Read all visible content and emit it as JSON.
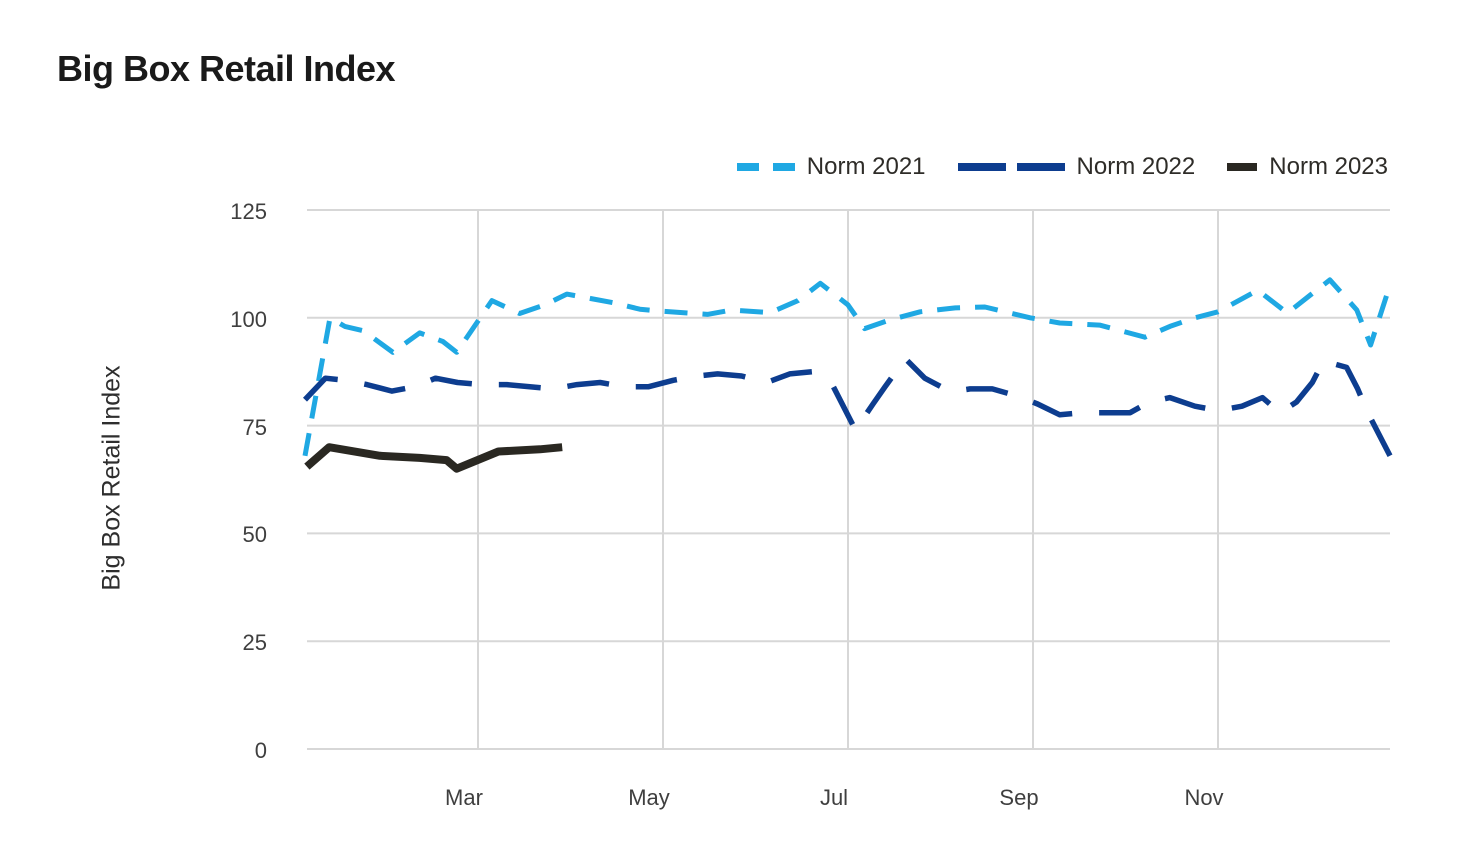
{
  "title": "Big Box Retail Index",
  "legend": {
    "items": [
      {
        "label": "Norm 2021",
        "color": "#1fa8e3",
        "swatch": "two-short-dashes"
      },
      {
        "label": "Norm 2022",
        "color": "#0d3d8f",
        "swatch": "two-long-dashes"
      },
      {
        "label": "Norm 2023",
        "color": "#2a2822",
        "swatch": "single-dash"
      }
    ]
  },
  "colors": {
    "grid": "#d7d7d7",
    "axis_text": "#3f3f3f",
    "title_text": "#1a1a1a",
    "norm_2021": "#1fa8e3",
    "norm_2022": "#0d3d8f",
    "norm_2023": "#2a2822"
  },
  "chart_data": {
    "type": "line",
    "title": "Big Box Retail Index",
    "xlabel": "",
    "ylabel": "Big Box Retail Index",
    "ylim": [
      0,
      125
    ],
    "x_unit": "months, 0 = Jan 1 through 12 = end of Dec",
    "xlim": [
      0.13,
      11.86
    ],
    "grid": true,
    "legend_position": "top-right",
    "y_ticks": [
      {
        "value": 0,
        "label": "0"
      },
      {
        "value": 25,
        "label": "25"
      },
      {
        "value": 50,
        "label": "50"
      },
      {
        "value": 75,
        "label": "75"
      },
      {
        "value": 100,
        "label": "100"
      },
      {
        "value": 125,
        "label": "125"
      }
    ],
    "x_ticks": [
      {
        "month": 2,
        "label": "Mar"
      },
      {
        "month": 4,
        "label": "May"
      },
      {
        "month": 6,
        "label": "Jul"
      },
      {
        "month": 8,
        "label": "Sep"
      },
      {
        "month": 10,
        "label": "Nov"
      }
    ],
    "series": [
      {
        "name": "Norm 2021",
        "color": "#1fa8e3",
        "dash": [
          23,
          15
        ],
        "width": 5,
        "points": [
          [
            0.13,
            68
          ],
          [
            0.4,
            100
          ],
          [
            0.56,
            98
          ],
          [
            0.76,
            97
          ],
          [
            1.08,
            92
          ],
          [
            1.37,
            96.5
          ],
          [
            1.62,
            94.5
          ],
          [
            1.77,
            92
          ],
          [
            2.15,
            104
          ],
          [
            2.45,
            101
          ],
          [
            2.72,
            103
          ],
          [
            2.96,
            105.5
          ],
          [
            3.46,
            103.5
          ],
          [
            3.75,
            102
          ],
          [
            4.0,
            101.5
          ],
          [
            4.48,
            100.8
          ],
          [
            4.74,
            101.8
          ],
          [
            5.16,
            101.2
          ],
          [
            5.46,
            104
          ],
          [
            5.7,
            108
          ],
          [
            6.0,
            103
          ],
          [
            6.18,
            97.5
          ],
          [
            6.45,
            99.5
          ],
          [
            6.78,
            101.4
          ],
          [
            7.16,
            102.3
          ],
          [
            7.48,
            102.5
          ],
          [
            7.97,
            100
          ],
          [
            8.29,
            98.8
          ],
          [
            8.72,
            98.3
          ],
          [
            9.0,
            96.7
          ],
          [
            9.21,
            95.5
          ],
          [
            9.48,
            98
          ],
          [
            9.75,
            100
          ],
          [
            10.0,
            101.4
          ],
          [
            10.43,
            106.4
          ],
          [
            10.75,
            101.1
          ],
          [
            11.0,
            105.3
          ],
          [
            11.21,
            108.8
          ],
          [
            11.5,
            101.8
          ],
          [
            11.65,
            93.7
          ],
          [
            11.86,
            107.6
          ]
        ]
      },
      {
        "name": "Norm 2022",
        "color": "#0d3d8f",
        "dash": [
          42,
          27
        ],
        "width": 5.5,
        "points": [
          [
            0.13,
            81
          ],
          [
            0.35,
            86
          ],
          [
            0.56,
            85.5
          ],
          [
            0.8,
            84.5
          ],
          [
            1.07,
            83
          ],
          [
            1.31,
            84
          ],
          [
            1.54,
            86
          ],
          [
            1.78,
            85
          ],
          [
            2.05,
            84.5
          ],
          [
            2.31,
            84.5
          ],
          [
            2.56,
            84
          ],
          [
            2.81,
            83.5
          ],
          [
            3.07,
            84.5
          ],
          [
            3.32,
            85
          ],
          [
            3.59,
            84
          ],
          [
            3.84,
            84
          ],
          [
            4.11,
            85.5
          ],
          [
            4.37,
            86.5
          ],
          [
            4.59,
            87
          ],
          [
            4.85,
            86.5
          ],
          [
            5.12,
            85
          ],
          [
            5.37,
            87
          ],
          [
            5.62,
            87.5
          ],
          [
            5.83,
            84.5
          ],
          [
            6.08,
            74
          ],
          [
            6.27,
            80
          ],
          [
            6.4,
            84
          ],
          [
            6.62,
            90.5
          ],
          [
            6.83,
            86
          ],
          [
            7.05,
            83.5
          ],
          [
            7.16,
            83
          ],
          [
            7.32,
            83.5
          ],
          [
            7.56,
            83.5
          ],
          [
            7.81,
            82
          ],
          [
            8.05,
            80
          ],
          [
            8.29,
            77.5
          ],
          [
            8.53,
            78
          ],
          [
            8.8,
            78
          ],
          [
            9.05,
            78
          ],
          [
            9.26,
            80.5
          ],
          [
            9.48,
            81.5
          ],
          [
            9.75,
            79.5
          ],
          [
            10.0,
            78.5
          ],
          [
            10.26,
            79.5
          ],
          [
            10.48,
            81.5
          ],
          [
            10.67,
            78
          ],
          [
            10.85,
            80.5
          ],
          [
            11.02,
            85
          ],
          [
            11.14,
            90
          ],
          [
            11.39,
            88.5
          ],
          [
            11.51,
            83.5
          ],
          [
            11.62,
            78
          ],
          [
            11.86,
            68
          ]
        ]
      },
      {
        "name": "Norm 2023",
        "color": "#2a2822",
        "dash": null,
        "width": 8,
        "points": [
          [
            0.15,
            65.5
          ],
          [
            0.39,
            70
          ],
          [
            0.94,
            68
          ],
          [
            1.37,
            67.5
          ],
          [
            1.66,
            67
          ],
          [
            1.77,
            65
          ],
          [
            2.22,
            69
          ],
          [
            2.67,
            69.5
          ],
          [
            2.91,
            70
          ]
        ]
      }
    ]
  }
}
